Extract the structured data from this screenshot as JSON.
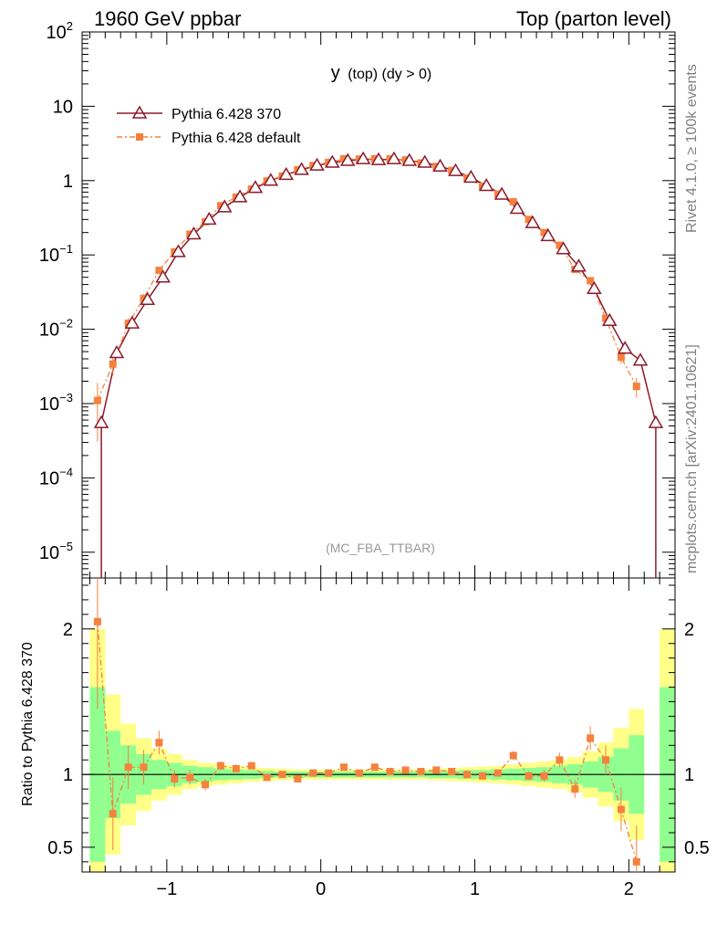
{
  "header": {
    "left": "1960 GeV ppbar",
    "right": "Top (parton level)"
  },
  "side_text": {
    "rivet": "Rivet 4.1.0, ≥ 100k events",
    "source": "mcplots.cern.ch [arXiv:2401.10621]"
  },
  "colors": {
    "ref": "#8b1a2b",
    "mc": "#f5813d",
    "band_inner": "#90ff90",
    "band_outer": "#ffff88"
  },
  "chart_data": {
    "type": "line",
    "title": "y (top) (dy > 0)",
    "title_main": "y",
    "title_sub": "(top) (dy > 0)",
    "watermark": "(MC_FBA_TTBAR)",
    "xlabel": "",
    "ylabel": "",
    "xlim": [
      -1.55,
      2.3
    ],
    "ylim": [
      4.5e-06,
      100
    ],
    "yscale": "log",
    "xticks": [
      -1,
      0,
      1,
      2
    ],
    "xtick_labels": [
      "−1",
      "0",
      "1",
      "2"
    ],
    "yticks": [
      {
        "value": 100,
        "base": "10",
        "exp": "2"
      },
      {
        "value": 10,
        "base": "10",
        "exp": ""
      },
      {
        "value": 1,
        "base": "1",
        "exp": ""
      },
      {
        "value": 0.1,
        "base": "10",
        "exp": "−1"
      },
      {
        "value": 0.01,
        "base": "10",
        "exp": "−2"
      },
      {
        "value": 0.001,
        "base": "10",
        "exp": "−3"
      },
      {
        "value": 0.0001,
        "base": "10",
        "exp": "−4"
      },
      {
        "value": 1e-05,
        "base": "10",
        "exp": "−5"
      }
    ],
    "legend": [
      "Pythia 6.428 370",
      "Pythia 6.428 default"
    ],
    "series": [
      {
        "name": "Pythia 6.428 370",
        "x": [
          -1.425,
          -1.325,
          -1.225,
          -1.125,
          -1.025,
          -0.925,
          -0.825,
          -0.725,
          -0.625,
          -0.525,
          -0.425,
          -0.325,
          -0.225,
          -0.125,
          -0.025,
          0.075,
          0.175,
          0.275,
          0.375,
          0.475,
          0.575,
          0.675,
          0.775,
          0.875,
          0.975,
          1.075,
          1.175,
          1.275,
          1.375,
          1.475,
          1.575,
          1.675,
          1.775,
          1.875,
          1.975,
          2.075,
          2.175
        ],
        "values": [
          0.00055,
          0.0048,
          0.012,
          0.025,
          0.05,
          0.11,
          0.19,
          0.3,
          0.44,
          0.6,
          0.8,
          1.0,
          1.2,
          1.4,
          1.6,
          1.75,
          1.85,
          1.95,
          1.9,
          1.95,
          1.85,
          1.75,
          1.55,
          1.35,
          1.1,
          0.85,
          0.65,
          0.42,
          0.27,
          0.18,
          0.12,
          0.07,
          0.035,
          0.013,
          0.0055,
          0.0038,
          0.00055
        ]
      },
      {
        "name": "Pythia 6.428 default",
        "x": [
          -1.45,
          -1.35,
          -1.25,
          -1.15,
          -1.05,
          -0.95,
          -0.85,
          -0.75,
          -0.65,
          -0.55,
          -0.45,
          -0.35,
          -0.25,
          -0.15,
          -0.05,
          0.05,
          0.15,
          0.25,
          0.35,
          0.45,
          0.55,
          0.65,
          0.75,
          0.85,
          0.95,
          1.05,
          1.15,
          1.25,
          1.35,
          1.45,
          1.55,
          1.65,
          1.75,
          1.85,
          1.95,
          2.05
        ],
        "values": [
          0.0011,
          0.0034,
          0.012,
          0.026,
          0.062,
          0.11,
          0.19,
          0.28,
          0.46,
          0.6,
          0.77,
          0.99,
          1.15,
          1.4,
          1.6,
          1.76,
          1.96,
          1.95,
          1.96,
          1.96,
          1.9,
          1.73,
          1.55,
          1.37,
          1.08,
          0.84,
          0.66,
          0.52,
          0.3,
          0.2,
          0.135,
          0.064,
          0.045,
          0.014,
          0.0042,
          0.0017
        ]
      }
    ],
    "ratio": {
      "ylabel": "Ratio to Pythia 6.428 370",
      "ylim": [
        0.33,
        2.35
      ],
      "yticks": [
        0.5,
        1,
        2
      ],
      "ytick_labels": [
        "0.5",
        "1",
        "2"
      ],
      "x": [
        -1.45,
        -1.35,
        -1.25,
        -1.15,
        -1.05,
        -0.95,
        -0.85,
        -0.75,
        -0.65,
        -0.55,
        -0.45,
        -0.35,
        -0.25,
        -0.15,
        -0.05,
        0.05,
        0.15,
        0.25,
        0.35,
        0.45,
        0.55,
        0.65,
        0.75,
        0.85,
        0.95,
        1.05,
        1.15,
        1.25,
        1.35,
        1.45,
        1.55,
        1.65,
        1.75,
        1.85,
        1.95,
        2.05
      ],
      "values": [
        2.05,
        0.73,
        1.05,
        1.05,
        1.22,
        0.97,
        0.98,
        0.93,
        1.06,
        1.04,
        1.06,
        0.98,
        1.0,
        0.97,
        1.01,
        1.01,
        1.05,
        1.01,
        1.05,
        1.02,
        1.03,
        1.02,
        1.03,
        1.02,
        1.0,
        0.99,
        1.01,
        1.13,
        0.99,
        0.99,
        1.1,
        0.9,
        1.25,
        1.1,
        0.76,
        0.4
      ],
      "errors": [
        0.6,
        0.25,
        0.15,
        0.12,
        0.08,
        0.06,
        0.05,
        0.04,
        0.03,
        0.02,
        0.02,
        0.02,
        0.01,
        0.01,
        0.01,
        0.01,
        0.01,
        0.01,
        0.01,
        0.01,
        0.01,
        0.01,
        0.01,
        0.01,
        0.01,
        0.02,
        0.02,
        0.03,
        0.03,
        0.04,
        0.05,
        0.06,
        0.08,
        0.1,
        0.15,
        0.25
      ],
      "band_edges": [
        -1.5,
        -1.4,
        -1.3,
        -1.2,
        -1.1,
        -1.0,
        -0.9,
        -0.8,
        -0.7,
        -0.6,
        -0.5,
        -0.4,
        -0.3,
        -0.2,
        -0.1,
        0.0,
        0.1,
        0.2,
        0.3,
        0.4,
        0.5,
        0.6,
        0.7,
        0.8,
        0.9,
        1.0,
        1.1,
        1.2,
        1.3,
        1.4,
        1.5,
        1.6,
        1.7,
        1.8,
        1.9,
        2.0,
        2.1,
        2.2,
        2.3
      ],
      "band_inner": [
        0.6,
        0.3,
        0.2,
        0.14,
        0.1,
        0.08,
        0.06,
        0.05,
        0.04,
        0.035,
        0.03,
        0.025,
        0.02,
        0.02,
        0.02,
        0.02,
        0.02,
        0.02,
        0.02,
        0.02,
        0.02,
        0.02,
        0.025,
        0.025,
        0.03,
        0.03,
        0.035,
        0.04,
        0.045,
        0.05,
        0.06,
        0.07,
        0.09,
        0.12,
        0.18,
        0.27,
        0.0,
        0.6
      ],
      "band_outer": [
        1.0,
        0.55,
        0.35,
        0.25,
        0.18,
        0.14,
        0.1,
        0.08,
        0.07,
        0.06,
        0.05,
        0.045,
        0.04,
        0.035,
        0.035,
        0.035,
        0.035,
        0.035,
        0.035,
        0.035,
        0.035,
        0.035,
        0.04,
        0.045,
        0.05,
        0.055,
        0.06,
        0.07,
        0.08,
        0.09,
        0.1,
        0.12,
        0.16,
        0.22,
        0.32,
        0.45,
        0.0,
        1.0
      ]
    }
  }
}
